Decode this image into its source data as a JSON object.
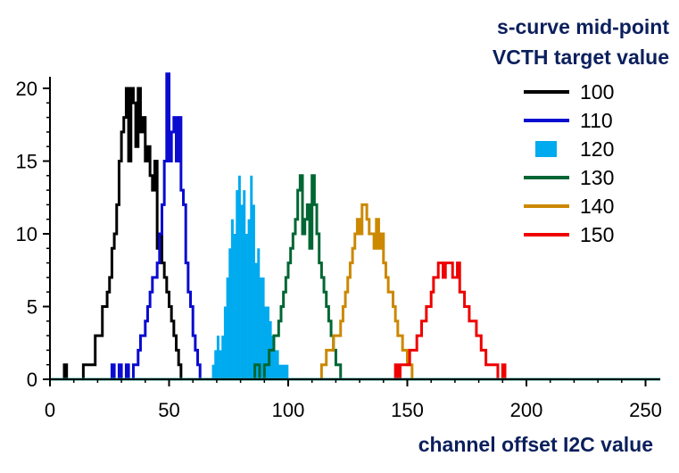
{
  "chart_data": {
    "type": "histogram",
    "title": [
      "s-curve mid-point",
      "VCTH target value"
    ],
    "xlabel": "channel offset I2C value",
    "ylabel": "",
    "xlim": [
      0,
      256
    ],
    "ylim": [
      0,
      21
    ],
    "xticks": [
      0,
      50,
      100,
      150,
      200,
      250
    ],
    "yticks": [
      0,
      5,
      10,
      15,
      20
    ],
    "grid": false,
    "legend_position": "top-right",
    "series": [
      {
        "name": "100",
        "color": "#000000",
        "style": "step",
        "start": 6,
        "counts": [
          1,
          0,
          0,
          0,
          0,
          0,
          0,
          0,
          1,
          1,
          1,
          1,
          1,
          3,
          3,
          3,
          5,
          5,
          6,
          7,
          9,
          10,
          12,
          15,
          17,
          18,
          20,
          15,
          20,
          19,
          16,
          20,
          17,
          18,
          15,
          16,
          14,
          13,
          15,
          9,
          10,
          8,
          7,
          6,
          5,
          4,
          3,
          2,
          1,
          0
        ]
      },
      {
        "name": "110",
        "color": "#0a0ad0",
        "style": "step",
        "start": 26,
        "counts": [
          1,
          0,
          0,
          1,
          0,
          0,
          1,
          0,
          0,
          1,
          1,
          2,
          3,
          3,
          4,
          5,
          6,
          7,
          7,
          8,
          10,
          12,
          15,
          21,
          15,
          17,
          18,
          15,
          18,
          13,
          12,
          8,
          6,
          5,
          3,
          2,
          1,
          0
        ]
      },
      {
        "name": "120",
        "color": "#00aaee",
        "style": "bar",
        "start": 68,
        "counts": [
          1,
          2,
          3,
          2,
          3,
          5,
          7,
          9,
          11,
          10,
          13,
          14,
          12,
          13,
          10,
          11,
          14,
          12,
          8,
          9,
          7,
          7,
          5,
          5,
          4,
          3,
          2,
          2,
          1,
          1,
          1,
          1
        ]
      },
      {
        "name": "130",
        "color": "#006633",
        "style": "step",
        "start": 86,
        "counts": [
          1,
          1,
          0,
          0,
          1,
          1,
          2,
          2,
          3,
          3,
          4,
          5,
          6,
          7,
          8,
          9,
          10,
          11,
          13,
          14,
          10,
          11,
          12,
          9,
          14,
          12,
          10,
          8,
          7,
          6,
          5,
          4,
          3,
          2,
          1,
          1
        ]
      },
      {
        "name": "140",
        "color": "#cc8800",
        "style": "step",
        "start": 114,
        "counts": [
          1,
          1,
          2,
          2,
          2,
          3,
          3,
          3,
          4,
          5,
          6,
          7,
          8,
          9,
          10,
          11,
          10,
          12,
          12,
          11,
          10,
          10,
          9,
          11,
          9,
          10,
          8,
          7,
          6,
          6,
          5,
          4,
          3,
          3,
          2,
          2,
          1,
          1
        ]
      },
      {
        "name": "150",
        "color": "#ee0000",
        "style": "step",
        "start": 145,
        "counts": [
          1,
          0,
          1,
          1,
          1,
          1,
          2,
          2,
          2,
          3,
          3,
          4,
          4,
          5,
          5,
          6,
          7,
          7,
          8,
          8,
          7,
          8,
          8,
          8,
          7,
          7,
          8,
          6,
          6,
          5,
          5,
          4,
          4,
          4,
          3,
          3,
          2,
          2,
          1,
          1,
          1,
          1,
          1,
          0,
          0,
          1
        ]
      }
    ]
  }
}
